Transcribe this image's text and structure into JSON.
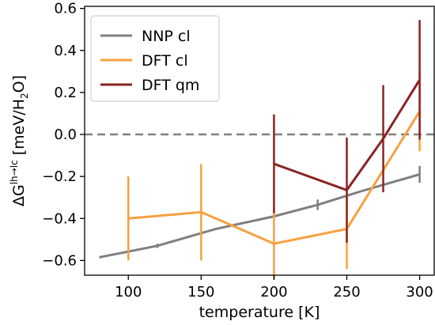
{
  "chart_data": {
    "type": "line",
    "xlabel": "temperature [K]",
    "ylabel": {
      "prefix": "ΔG",
      "superscript": "lh→lc",
      "suffix": " [meV/H",
      "subscript": "2",
      "end": "O]"
    },
    "xlim": [
      70,
      310
    ],
    "ylim": [
      -0.67,
      0.61
    ],
    "xticks": [
      100,
      150,
      200,
      250,
      300
    ],
    "yticks": [
      -0.6,
      -0.4,
      -0.2,
      0.0,
      0.2,
      0.4,
      0.6
    ],
    "xtick_labels": [
      "100",
      "150",
      "200",
      "250",
      "300"
    ],
    "ytick_labels": [
      "−0.6",
      "−0.4",
      "−0.2",
      "0.0",
      "0.2",
      "0.4",
      "0.6"
    ],
    "grid": false,
    "legend_position": "top-left",
    "reference_line": {
      "y": 0.0,
      "style": "dashed",
      "color": "#808080"
    },
    "series": [
      {
        "name": "NNP cl",
        "color": "#7f7f7f",
        "x": [
          80,
          120,
          160,
          200,
          230,
          260,
          300
        ],
        "y": [
          -0.585,
          -0.53,
          -0.45,
          -0.39,
          -0.335,
          -0.27,
          -0.19
        ],
        "error_x": [
          120,
          230,
          300
        ],
        "error_y": [
          -0.53,
          -0.335,
          -0.19
        ],
        "error_half": [
          0.01,
          0.025,
          0.04
        ]
      },
      {
        "name": "DFT cl",
        "color": "#f7a040",
        "x": [
          100,
          150,
          200,
          250,
          300
        ],
        "y": [
          -0.4,
          -0.37,
          -0.52,
          -0.45,
          0.11
        ],
        "error_half": [
          0.2,
          0.23,
          0.17,
          0.19,
          0.19
        ]
      },
      {
        "name": "DFT qm",
        "color": "#8b2323",
        "x": [
          200,
          250,
          275,
          300
        ],
        "y": [
          -0.14,
          -0.265,
          -0.02,
          0.26
        ],
        "error_half": [
          0.235,
          0.25,
          0.255,
          0.285
        ]
      }
    ]
  }
}
